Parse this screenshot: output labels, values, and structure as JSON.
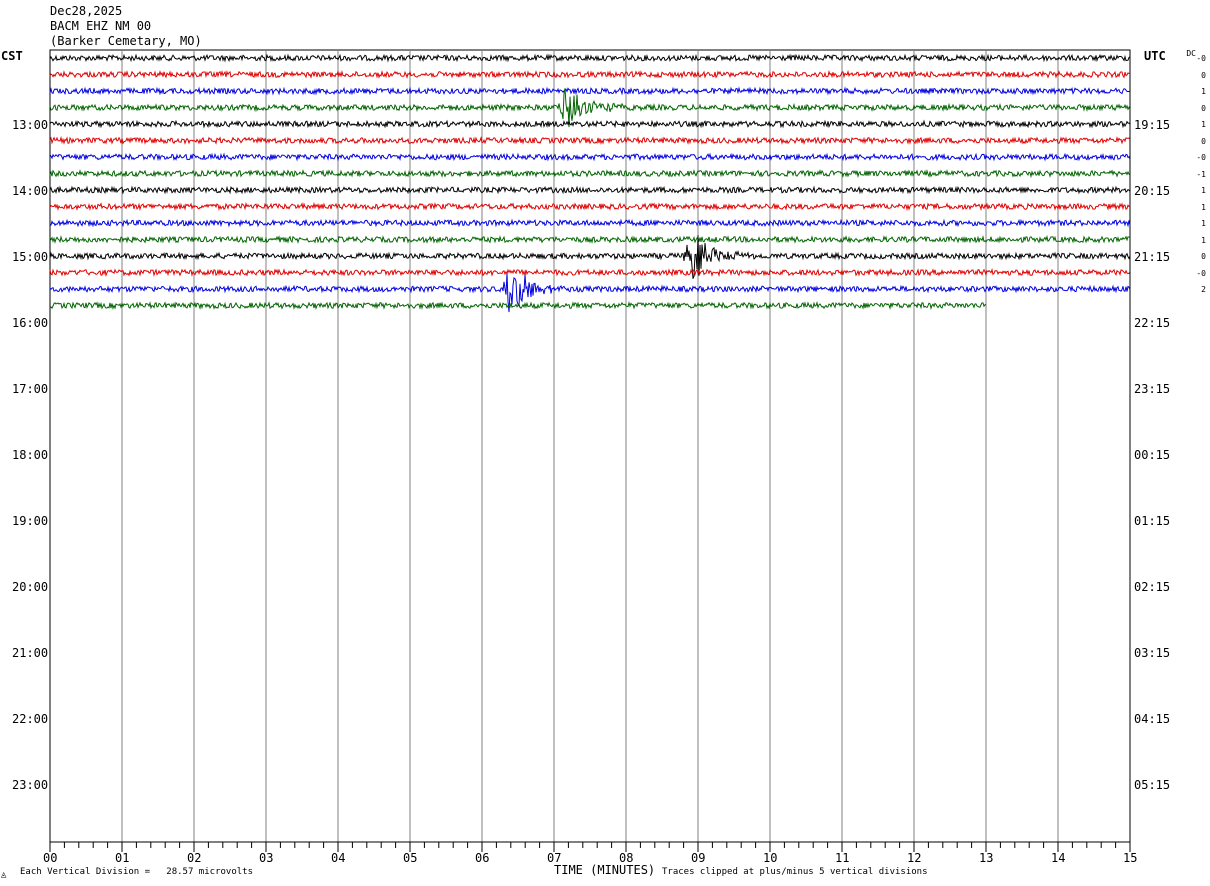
{
  "header": {
    "date": "Dec28,2025",
    "station": "BACM EHZ NM 00",
    "location": "(Barker Cemetary, MO)"
  },
  "chart_data": {
    "type": "line",
    "title": "BACM EHZ NM 00",
    "left_axis_label": "CST",
    "right_axis_label": "UTC",
    "dc_label": "DC",
    "xlabel": "TIME (MINUTES)",
    "x_ticks": [
      "00",
      "01",
      "02",
      "03",
      "04",
      "05",
      "06",
      "07",
      "08",
      "09",
      "10",
      "11",
      "12",
      "13",
      "14",
      "15"
    ],
    "xlim": [
      0,
      15
    ],
    "cst_hours": [
      "13:00",
      "14:00",
      "15:00",
      "16:00",
      "17:00",
      "18:00",
      "19:00",
      "20:00",
      "21:00",
      "22:00",
      "23:00"
    ],
    "utc_hours": [
      "19:15",
      "20:15",
      "21:15",
      "22:15",
      "23:15",
      "00:15",
      "01:15",
      "02:15",
      "03:15",
      "04:15",
      "05:15"
    ],
    "trace_colors": [
      "#000000",
      "#e00000",
      "#0000e0",
      "#006400"
    ],
    "traces_per_hour": 4,
    "minutes_per_trace": 15,
    "dc_offsets": [
      "-0",
      "0",
      "1",
      "0",
      "1",
      "0",
      "-0",
      "-1",
      "1",
      "1",
      "1",
      "1",
      "0",
      "-0",
      "2"
    ],
    "traces_recorded": 16,
    "last_trace_end_minute": 13,
    "events": [
      {
        "trace": 3,
        "minute": 7.2,
        "amplitude": "large",
        "color_index": 3
      },
      {
        "trace": 12,
        "minute": 8.95,
        "amplitude": "large",
        "color_index": 0
      },
      {
        "trace": 14,
        "minute": 6.4,
        "amplitude": "large",
        "color_index": 2
      }
    ],
    "grid": true
  },
  "footer": {
    "division_note": "Each Vertical Division =   28.57 microvolts",
    "clip_note": "Traces clipped at plus/minus 5 vertical divisions",
    "corner_mark": "◬"
  }
}
